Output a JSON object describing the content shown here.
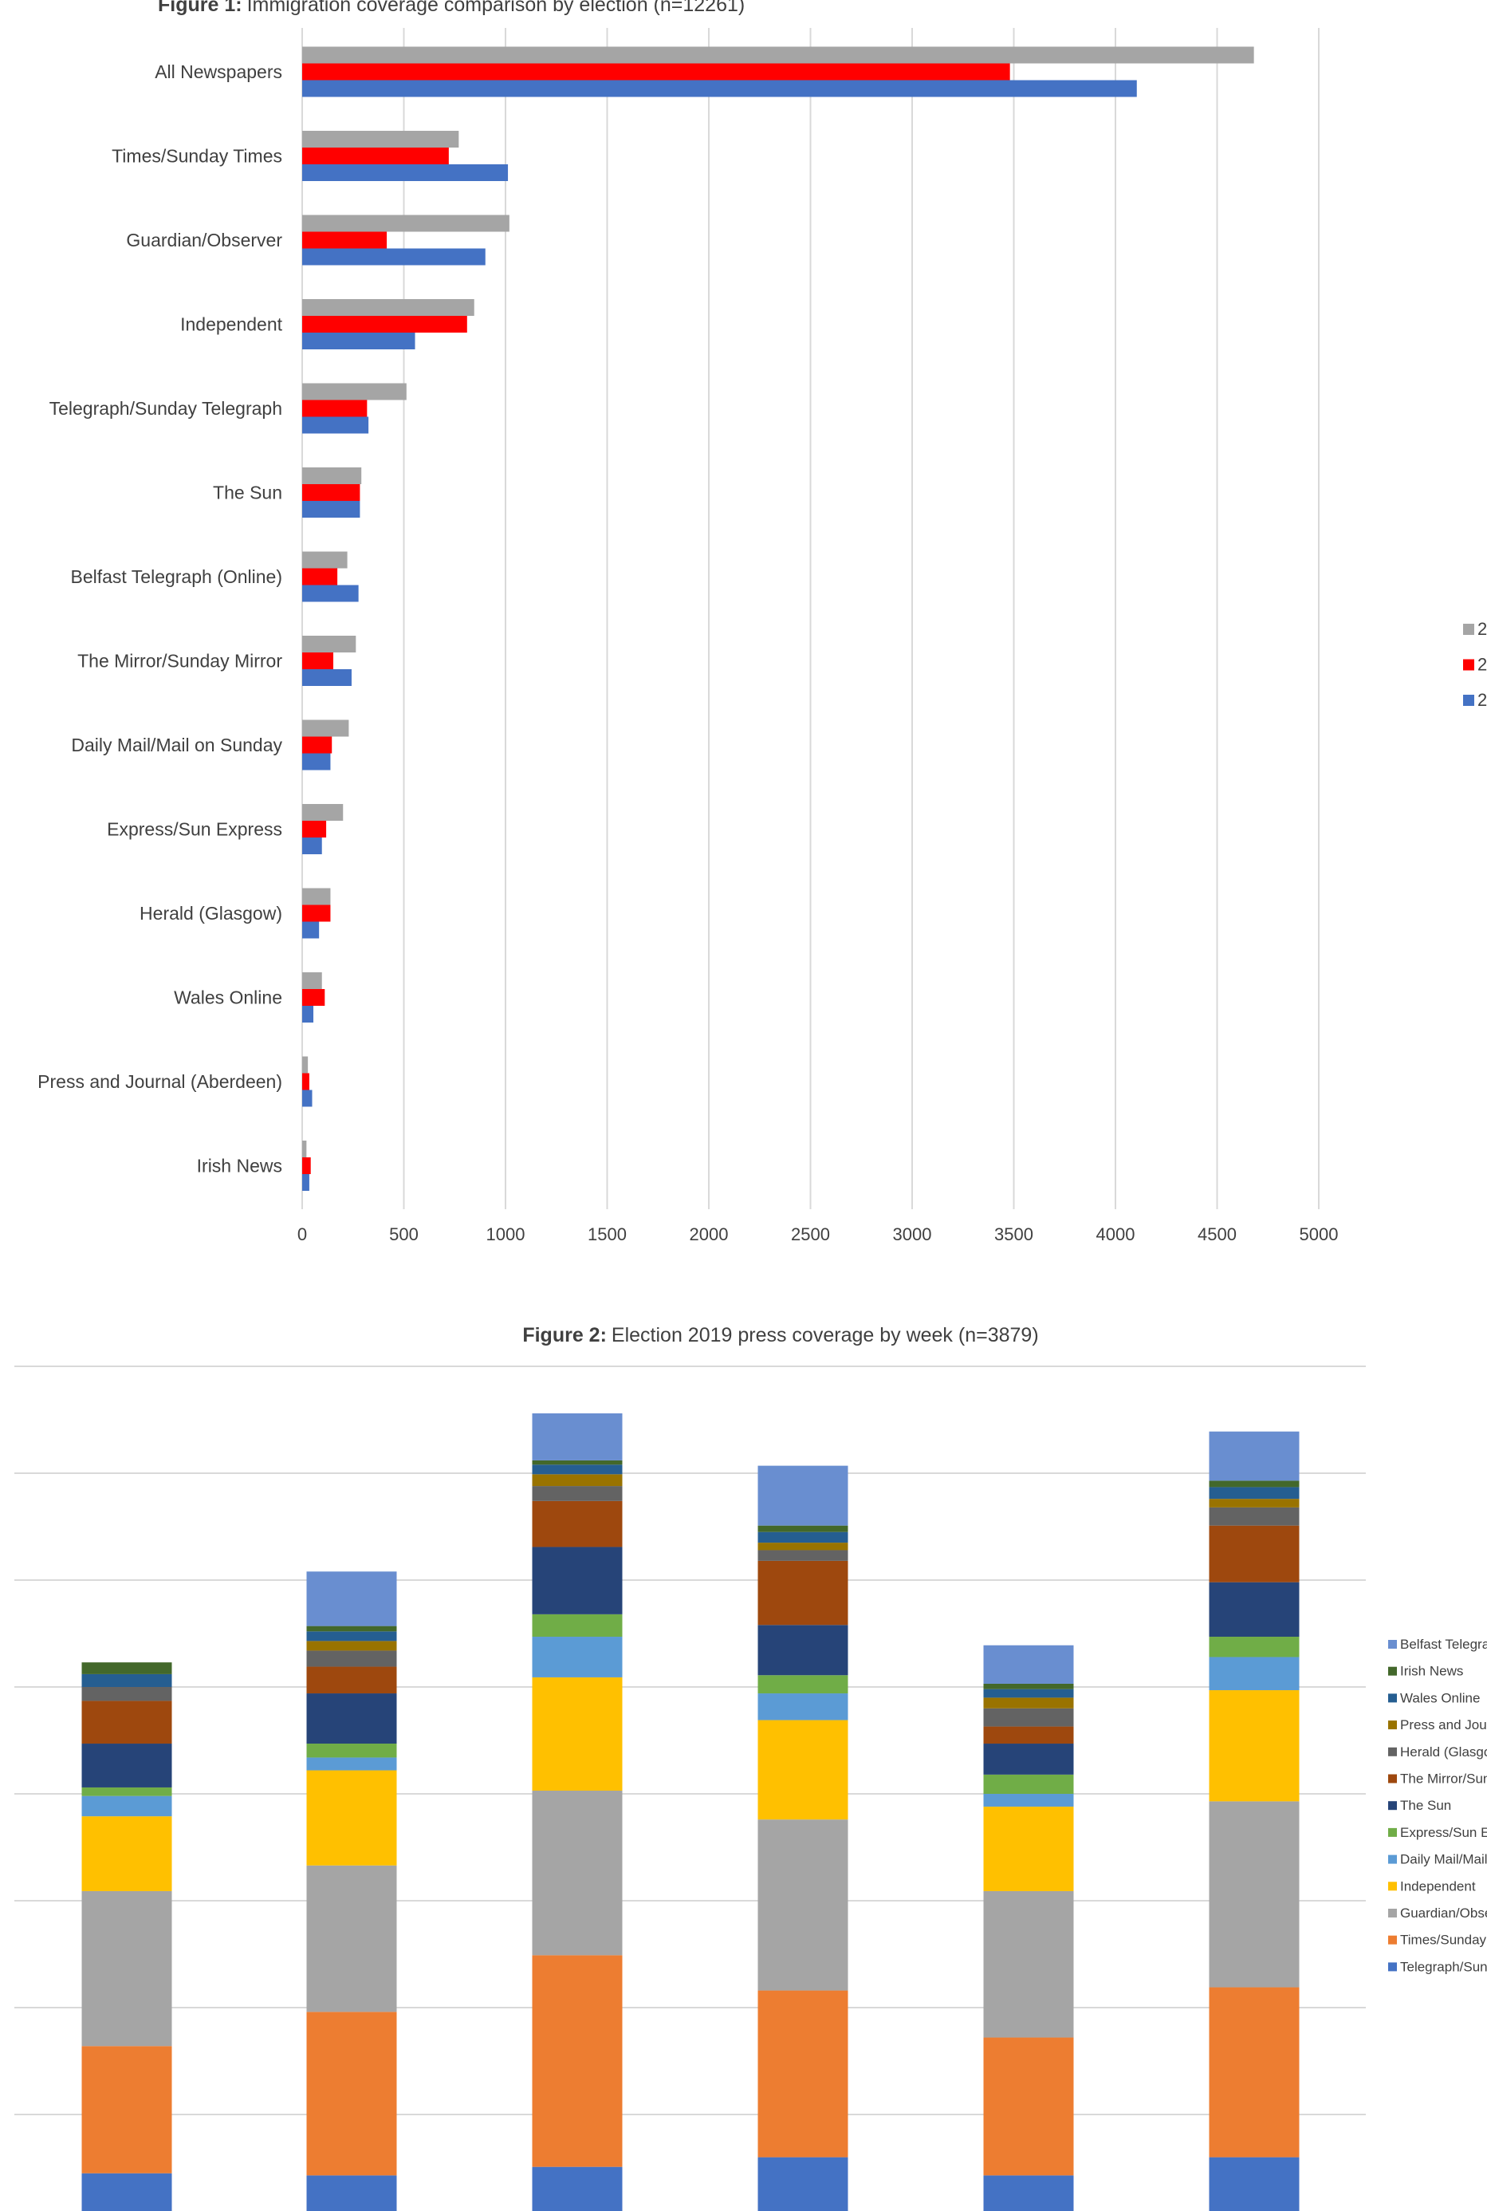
{
  "chart_data": [
    {
      "type": "bar",
      "orientation": "horizontal",
      "title_bold": "Figure 1:",
      "title": "Immigration coverage comparison by election (n=12261)",
      "categories": [
        "All Newspapers",
        "Times/Sunday Times",
        "Guardian/Observer",
        "Independent",
        "Telegraph/Sunday Telegraph",
        "The Sun",
        "Belfast Telegraph (Online)",
        "The Mirror/Sunday Mirror",
        "Daily Mail/Mail on Sunday",
        "Express/Sun Express",
        "Herald (Glasgow)",
        "Wales Online",
        "Press and Journal (Aberdeen)",
        "Irish News"
      ],
      "series": [
        {
          "name": "2",
          "color": "#a5a5a5",
          "values": [
            4681,
            770,
            1019,
            846,
            513,
            291,
            222,
            264,
            229,
            201,
            139,
            97,
            28,
            21
          ]
        },
        {
          "name": "2",
          "color": "#ff0000",
          "values": [
            3481,
            721,
            416,
            811,
            319,
            284,
            173,
            153,
            146,
            118,
            139,
            111,
            35,
            42
          ]
        },
        {
          "name": "2",
          "color": "#4472c4",
          "values": [
            4105,
            1012,
            901,
            555,
            326,
            284,
            277,
            243,
            139,
            97,
            83,
            55,
            49,
            35
          ]
        }
      ],
      "xticks": [
        "0",
        "500",
        "1000",
        "1500",
        "2000",
        "2500",
        "3000",
        "3500",
        "4000",
        "4500",
        "5000"
      ],
      "xlim": [
        0,
        5000
      ],
      "grid": true,
      "legend": "right"
    },
    {
      "type": "bar",
      "stacked": true,
      "title_bold": "Figure 2:",
      "title": "Election 2019 press coverage by week (n=3879)",
      "ylim": [
        0,
        800
      ],
      "grid": true,
      "legend": "right",
      "series": [
        {
          "name": "Telegraph/Sunday Telegraph",
          "color": "#4472c4",
          "values": [
            45,
            43,
            51,
            60,
            43,
            60
          ]
        },
        {
          "name": "Times/Sunday Times",
          "color": "#ed7d31",
          "values": [
            119,
            153,
            198,
            156,
            129,
            159
          ]
        },
        {
          "name": "Guardian/Observer",
          "color": "#a5a5a5",
          "values": [
            145,
            137,
            154,
            160,
            137,
            174
          ]
        },
        {
          "name": "Independent",
          "color": "#ffc000",
          "values": [
            70,
            89,
            106,
            93,
            79,
            104
          ]
        },
        {
          "name": "Daily Mail/Mail on Sunday",
          "color": "#5b9bd5",
          "values": [
            19,
            12,
            38,
            25,
            12,
            31
          ]
        },
        {
          "name": "Express/Sun Express",
          "color": "#70ad47",
          "values": [
            8,
            13,
            21,
            17,
            18,
            19
          ]
        },
        {
          "name": "The Sun",
          "color": "#264478",
          "values": [
            41,
            47,
            63,
            47,
            29,
            51
          ]
        },
        {
          "name": "The Mirror/Sunday Mirror",
          "color": "#9e480e",
          "values": [
            40,
            25,
            43,
            60,
            16,
            53
          ]
        },
        {
          "name": "Herald (Glasgow)",
          "color": "#636363",
          "values": [
            13,
            15,
            14,
            10,
            17,
            17
          ]
        },
        {
          "name": "Press and Journal (Aberdeen)",
          "color": "#997300",
          "values": [
            0,
            9,
            11,
            7,
            10,
            8
          ]
        },
        {
          "name": "Wales Online",
          "color": "#255e91",
          "values": [
            12,
            9,
            9,
            10,
            8,
            11
          ]
        },
        {
          "name": "Irish News",
          "color": "#43682b",
          "values": [
            11,
            5,
            4,
            6,
            5,
            6
          ]
        },
        {
          "name": "Belfast Telegraph (Online)",
          "color": "#698ed0",
          "values": [
            0,
            51,
            44,
            56,
            36,
            46
          ]
        }
      ]
    }
  ]
}
